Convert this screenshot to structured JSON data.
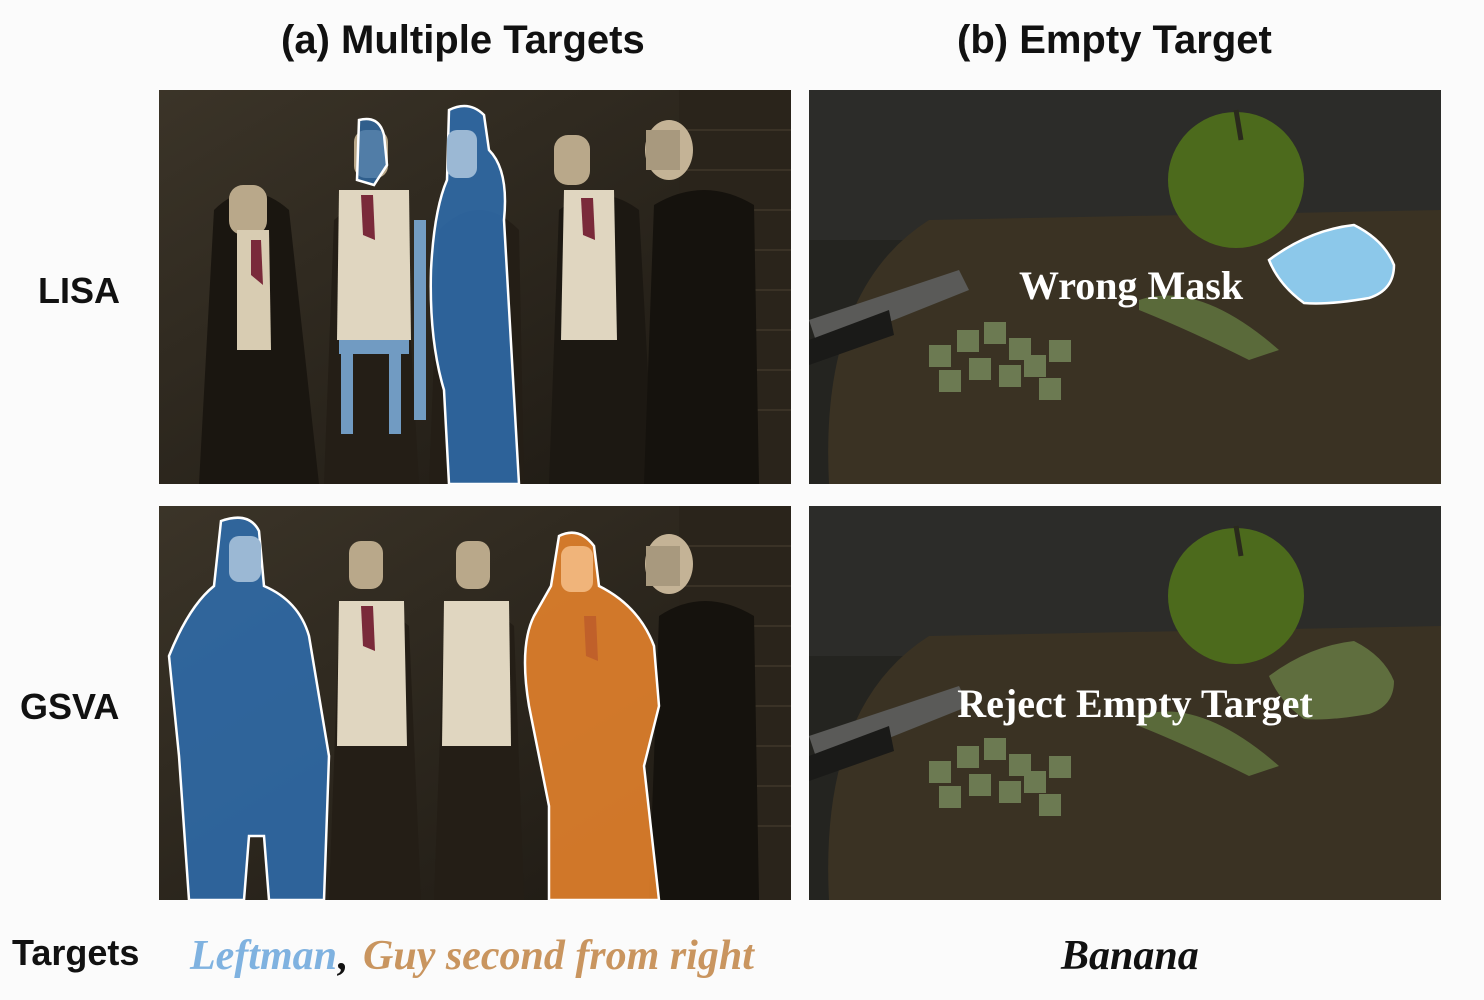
{
  "titles": {
    "multiple": "(a) Multiple Targets",
    "empty": "(b) Empty Target"
  },
  "rows": {
    "lisa": "LISA",
    "gsva": "GSVA"
  },
  "overlays": {
    "wrong_mask": "Wrong Mask",
    "reject": "Reject Empty Target"
  },
  "targets": {
    "label": "Targets",
    "leftman": "Leftman",
    "comma": ",",
    "guy": "Guy second from right",
    "banana": "Banana"
  },
  "colors": {
    "leftman": "#7fb2e0",
    "guy": "#c9955f",
    "banana": "#111111",
    "mask_blue": "#2f6fb0",
    "mask_orange": "#e8842c",
    "apple_mask": "#8cc8ea"
  }
}
